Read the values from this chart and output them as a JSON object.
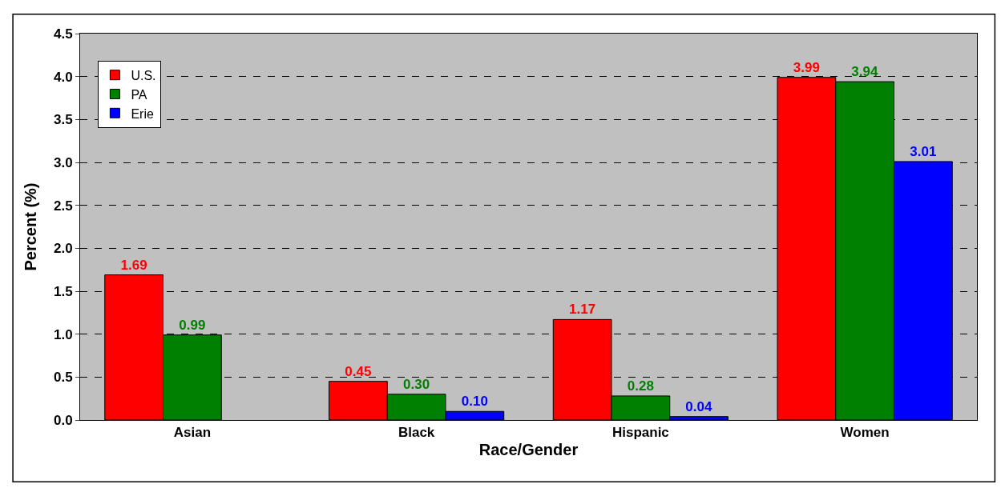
{
  "chart_data": {
    "type": "bar",
    "xlabel": "Race/Gender",
    "ylabel": "Percent (%)",
    "categories": [
      "Asian",
      "Black",
      "Hispanic",
      "Women"
    ],
    "series": [
      {
        "name": "U.S.",
        "color": "#ff0000",
        "values": [
          1.69,
          0.45,
          1.17,
          3.99
        ],
        "value_labels": [
          "1.69",
          "0.45",
          "1.17",
          "3.99"
        ]
      },
      {
        "name": "PA",
        "color": "#008000",
        "values": [
          0.99,
          0.3,
          0.28,
          3.94
        ],
        "value_labels": [
          "0.99",
          "0.30",
          "0.28",
          "3.94"
        ]
      },
      {
        "name": "Erie",
        "color": "#0000ff",
        "values": [
          null,
          0.1,
          0.04,
          3.01
        ],
        "value_labels": [
          null,
          "0.10",
          "0.04",
          "3.01"
        ]
      }
    ],
    "ylim": [
      0,
      4.5
    ],
    "yticks": [
      {
        "value": 0,
        "label": "0.0"
      },
      {
        "value": 0.5,
        "label": "0.5"
      },
      {
        "value": 1,
        "label": "1.0"
      },
      {
        "value": 1.5,
        "label": "1.5"
      },
      {
        "value": 2,
        "label": "2.0"
      },
      {
        "value": 2.5,
        "label": "2.5"
      },
      {
        "value": 3,
        "label": "3.0"
      },
      {
        "value": 3.5,
        "label": "3.5"
      },
      {
        "value": 4,
        "label": "4.0"
      },
      {
        "value": 4.5,
        "label": "4.5"
      }
    ],
    "grid": "y",
    "legend": "top left"
  }
}
